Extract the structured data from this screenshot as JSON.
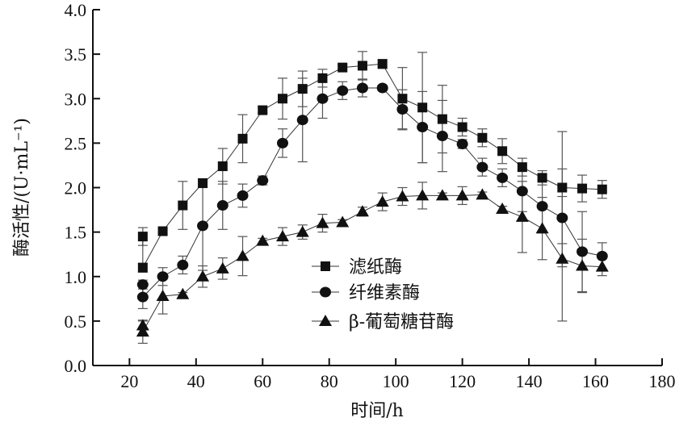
{
  "chart_data": {
    "type": "line",
    "title": "",
    "xlabel": "时间/h",
    "ylabel": "酶活性/(U·mL⁻¹)",
    "xlim": [
      9,
      180
    ],
    "ylim": [
      0,
      4.0
    ],
    "xticks": [
      20,
      40,
      60,
      80,
      100,
      120,
      140,
      160,
      180
    ],
    "yticks": [
      0.0,
      0.5,
      1.0,
      1.5,
      2.0,
      2.5,
      3.0,
      3.5,
      4.0
    ],
    "xtick_labels": [
      "20",
      "40",
      "60",
      "80",
      "100",
      "120",
      "140",
      "160",
      "180"
    ],
    "ytick_labels": [
      "0.0",
      "0.5",
      "1.0",
      "1.5",
      "2.0",
      "2.5",
      "3.0",
      "3.5",
      "4.0"
    ],
    "grid": false,
    "legend_position": "center",
    "x": [
      24,
      24,
      30,
      36,
      42,
      48,
      54,
      60,
      66,
      72,
      78,
      84,
      90,
      96,
      102,
      108,
      114,
      120,
      126,
      132,
      138,
      144,
      150,
      156,
      162
    ],
    "series": [
      {
        "name": "滤纸酶",
        "marker": "square",
        "values": [
          1.45,
          1.1,
          1.51,
          1.8,
          2.05,
          2.24,
          2.55,
          2.87,
          3.0,
          3.11,
          3.23,
          3.35,
          3.37,
          3.39,
          3.0,
          2.9,
          2.77,
          2.68,
          2.56,
          2.41,
          2.23,
          2.11,
          2.0,
          1.99,
          1.98
        ],
        "errors": [
          0.1,
          0.05,
          0.03,
          0.27,
          0.05,
          0.2,
          0.27,
          0.03,
          0.23,
          0.2,
          0.1,
          0.03,
          0.16,
          0.05,
          0.35,
          0.62,
          0.38,
          0.1,
          0.1,
          0.14,
          0.1,
          0.08,
          0.63,
          0.15,
          0.1
        ]
      },
      {
        "name": "纤维素酶",
        "marker": "circle",
        "values": [
          0.91,
          0.77,
          1.0,
          1.13,
          1.57,
          1.8,
          1.91,
          2.08,
          2.5,
          2.76,
          3.0,
          3.09,
          3.12,
          3.12,
          2.88,
          2.68,
          2.58,
          2.49,
          2.23,
          2.11,
          1.96,
          1.79,
          1.66,
          1.28,
          1.23
        ],
        "errors": [
          0.05,
          0.13,
          0.1,
          0.1,
          0.5,
          0.27,
          0.13,
          0.05,
          0.16,
          0.47,
          0.22,
          0.1,
          0.1,
          0.03,
          0.22,
          0.4,
          0.4,
          0.05,
          0.1,
          0.1,
          0.23,
          0.3,
          0.55,
          0.45,
          0.15
        ]
      },
      {
        "name": "β-葡萄糖苷酶",
        "marker": "triangle",
        "values": [
          0.45,
          0.38,
          0.78,
          0.8,
          1.0,
          1.09,
          1.23,
          1.4,
          1.45,
          1.5,
          1.6,
          1.61,
          1.73,
          1.84,
          1.9,
          1.91,
          1.91,
          1.91,
          1.92,
          1.76,
          1.67,
          1.54,
          1.2,
          1.12,
          1.11
        ],
        "errors": [
          0.05,
          0.13,
          0.2,
          0.02,
          0.12,
          0.12,
          0.22,
          0.03,
          0.1,
          0.08,
          0.1,
          0.03,
          0.05,
          0.1,
          0.1,
          0.15,
          0.03,
          0.1,
          0.03,
          0.03,
          0.4,
          0.35,
          0.7,
          0.3,
          0.1
        ]
      }
    ],
    "colors": {
      "marker": "#111111",
      "line": "#333333",
      "errorbar": "#555555"
    }
  }
}
